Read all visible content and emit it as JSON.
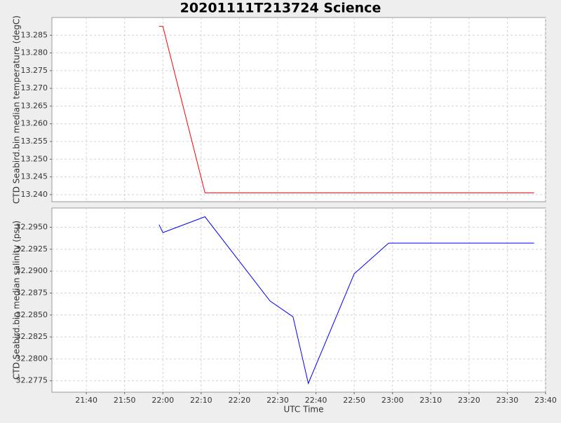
{
  "chart_data": [
    {
      "type": "line",
      "title": "20201111T213724 Science",
      "y_label": "CTD Seabird.bin median temperature (degC)",
      "x": [
        "21:59",
        "22:00",
        "22:11",
        "23:37"
      ],
      "series": [
        {
          "name": "temperature",
          "color": "#ff0000",
          "values": [
            13.2875,
            13.2875,
            13.2405,
            13.2405
          ]
        }
      ],
      "xlim": [
        "21:31",
        "23:40"
      ],
      "ylim": [
        13.238,
        13.29
      ],
      "yticks": [
        {
          "value": 13.24,
          "label": "13.240"
        },
        {
          "value": 13.245,
          "label": "13.245"
        },
        {
          "value": 13.25,
          "label": "13.250"
        },
        {
          "value": 13.255,
          "label": "13.255"
        },
        {
          "value": 13.26,
          "label": "13.260"
        },
        {
          "value": 13.265,
          "label": "13.265"
        },
        {
          "value": 13.27,
          "label": "13.270"
        },
        {
          "value": 13.275,
          "label": "13.275"
        },
        {
          "value": 13.28,
          "label": "13.280"
        },
        {
          "value": 13.285,
          "label": "13.285"
        }
      ],
      "grid": true
    },
    {
      "type": "line",
      "x_label": "UTC Time",
      "y_label": "CTD Seabird.bin median salinity (psu)",
      "x": [
        "21:59",
        "22:00",
        "22:11",
        "22:28",
        "22:34",
        "22:38",
        "22:50",
        "22:59",
        "23:37"
      ],
      "series": [
        {
          "name": "salinity",
          "color": "#0000ff",
          "values": [
            32.2953,
            32.2944,
            32.2962,
            32.2866,
            32.2848,
            32.2772,
            32.2897,
            32.2932,
            32.2932
          ]
        }
      ],
      "xlim": [
        "21:31",
        "23:40"
      ],
      "xticks": [
        "21:40",
        "21:50",
        "22:00",
        "22:10",
        "22:20",
        "22:30",
        "22:40",
        "22:50",
        "23:00",
        "23:10",
        "23:20",
        "23:30",
        "23:40"
      ],
      "ylim": [
        32.2762,
        32.2972
      ],
      "yticks": [
        {
          "value": 32.2775,
          "label": "32.2775"
        },
        {
          "value": 32.28,
          "label": "32.2800"
        },
        {
          "value": 32.2825,
          "label": "32.2825"
        },
        {
          "value": 32.285,
          "label": "32.2850"
        },
        {
          "value": 32.2875,
          "label": "32.2875"
        },
        {
          "value": 32.29,
          "label": "32.2900"
        },
        {
          "value": 32.2925,
          "label": "32.2925"
        },
        {
          "value": 32.295,
          "label": "32.2950"
        }
      ],
      "grid": true
    }
  ]
}
